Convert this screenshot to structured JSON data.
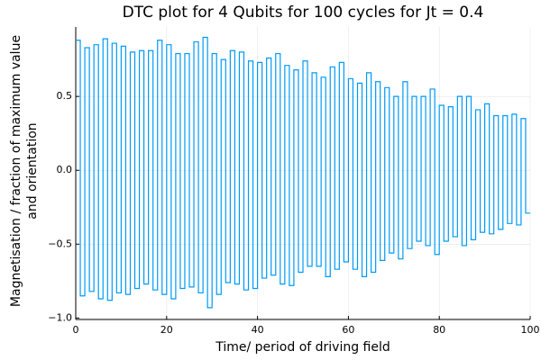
{
  "chart_data": {
    "type": "step",
    "title": "DTC plot for 4 Qubits for 100 cycles for Jt = 0.4",
    "xlabel": "Time/ period of driving field",
    "ylabel": [
      "Magnetisation / fraction of maximum value",
      "and orientation"
    ],
    "x": [
      0,
      1,
      2,
      3,
      4,
      5,
      6,
      7,
      8,
      9,
      10,
      11,
      12,
      13,
      14,
      15,
      16,
      17,
      18,
      19,
      20,
      21,
      22,
      23,
      24,
      25,
      26,
      27,
      28,
      29,
      30,
      31,
      32,
      33,
      34,
      35,
      36,
      37,
      38,
      39,
      40,
      41,
      42,
      43,
      44,
      45,
      46,
      47,
      48,
      49,
      50,
      51,
      52,
      53,
      54,
      55,
      56,
      57,
      58,
      59,
      60,
      61,
      62,
      63,
      64,
      65,
      66,
      67,
      68,
      69,
      70,
      71,
      72,
      73,
      74,
      75,
      76,
      77,
      78,
      79,
      80,
      81,
      82,
      83,
      84,
      85,
      86,
      87,
      88,
      89,
      90,
      91,
      92,
      93,
      94,
      95,
      96,
      97,
      98,
      99
    ],
    "series": [
      {
        "color": "#009af9",
        "values": [
          0.88,
          -0.85,
          0.83,
          -0.82,
          0.85,
          -0.87,
          0.89,
          -0.88,
          0.86,
          -0.83,
          0.84,
          -0.84,
          0.8,
          -0.8,
          0.81,
          -0.77,
          0.81,
          -0.81,
          0.88,
          -0.84,
          0.85,
          -0.87,
          0.79,
          -0.8,
          0.79,
          -0.79,
          0.87,
          -0.83,
          0.9,
          -0.93,
          0.79,
          -0.84,
          0.75,
          -0.76,
          0.81,
          -0.77,
          0.8,
          -0.81,
          0.74,
          -0.8,
          0.73,
          -0.73,
          0.76,
          -0.71,
          0.79,
          -0.77,
          0.71,
          -0.78,
          0.68,
          -0.69,
          0.74,
          -0.65,
          0.66,
          -0.65,
          0.63,
          -0.72,
          0.7,
          -0.67,
          0.73,
          -0.62,
          0.62,
          -0.67,
          0.59,
          -0.72,
          0.66,
          -0.69,
          0.6,
          -0.61,
          0.56,
          -0.56,
          0.5,
          -0.6,
          0.6,
          -0.53,
          0.5,
          -0.48,
          0.5,
          -0.51,
          0.55,
          -0.57,
          0.44,
          -0.48,
          0.43,
          -0.45,
          0.5,
          -0.51,
          0.5,
          -0.47,
          0.41,
          -0.42,
          0.45,
          -0.43,
          0.37,
          -0.4,
          0.37,
          -0.36,
          0.38,
          -0.37,
          0.35,
          -0.29
        ]
      }
    ],
    "xlim": [
      0,
      100
    ],
    "xticks": [
      0,
      20,
      40,
      60,
      80,
      100
    ],
    "ylim": [
      -1.01,
      0.97
    ],
    "yticks": [
      {
        "value": -1.0,
        "label": "−1.0"
      },
      {
        "value": -0.5,
        "label": "−0.5"
      },
      {
        "value": 0.0,
        "label": "0.0"
      },
      {
        "value": 0.5,
        "label": "0.5"
      }
    ],
    "grid": true
  }
}
